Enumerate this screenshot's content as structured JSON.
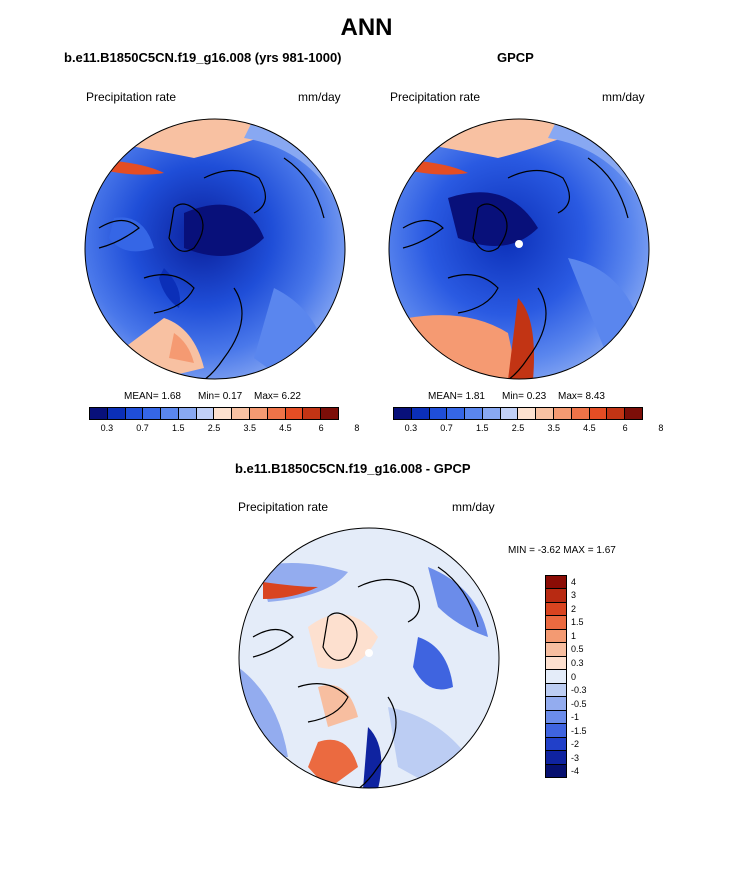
{
  "title": "ANN",
  "panels": [
    {
      "case": "b.e11.B1850C5CN.f19_g16.008 (yrs 981-1000)",
      "variable": "Precipitation rate",
      "units": "mm/day",
      "stats": {
        "mean": "MEAN=   1.68",
        "min": "Min=   0.17",
        "max": "Max=   6.22"
      }
    },
    {
      "case": "GPCP",
      "variable": "Precipitation rate",
      "units": "mm/day",
      "stats": {
        "mean": "MEAN=   1.81",
        "min": "Min=   0.23",
        "max": "Max=   8.43"
      }
    },
    {
      "case": "b.e11.B1850C5CN.f19_g16.008 - GPCP",
      "variable": "Precipitation rate",
      "units": "mm/day",
      "stats_line": "MIN =  -3.62 MAX =   1.67"
    }
  ],
  "colorbar_main": {
    "colors": [
      "#08107a",
      "#0b2fb8",
      "#1f4ed8",
      "#3566e6",
      "#5a86ee",
      "#88a8f2",
      "#c1d0f7",
      "#fde1cf",
      "#f8c1a2",
      "#f59a72",
      "#ef7348",
      "#e44d24",
      "#c23414",
      "#7c0e08"
    ],
    "tick_labels": [
      "0.3",
      "0.7",
      "1.5",
      "2.5",
      "3.5",
      "4.5",
      "6",
      "8"
    ]
  },
  "colorbar_diff": {
    "colors": [
      "#8b0c05",
      "#b82a12",
      "#d94420",
      "#eb6a40",
      "#f39a72",
      "#f7bea0",
      "#fde0cf",
      "#e4ecf9",
      "#bccdf3",
      "#93acef",
      "#6b8cea",
      "#3f64e0",
      "#2140c9",
      "#0f23a0",
      "#061070"
    ],
    "tick_labels": [
      "4",
      "3",
      "2",
      "1.5",
      "1",
      "0.5",
      "0.3",
      "0",
      "-0.3",
      "-0.5",
      "-1",
      "-1.5",
      "-2",
      "-3",
      "-4"
    ]
  }
}
